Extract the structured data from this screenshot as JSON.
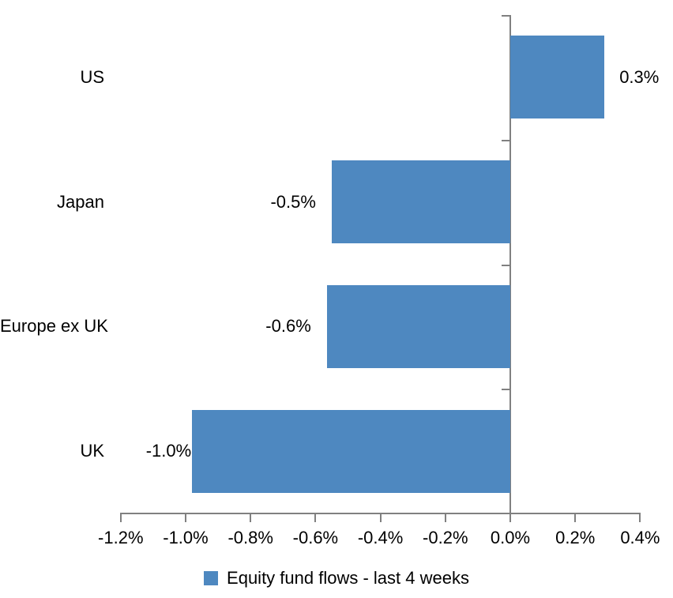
{
  "chart_data": {
    "type": "bar",
    "orientation": "horizontal",
    "title": "",
    "xlabel": "",
    "ylabel": "",
    "categories": [
      "US",
      "Japan",
      "Europe ex UK",
      "UK"
    ],
    "values": [
      0.3,
      -0.5,
      -0.6,
      -1.0
    ],
    "values_as_drawn": [
      0.29,
      -0.55,
      -0.565,
      -0.98
    ],
    "data_labels": [
      "0.3%",
      "-0.5%",
      "-0.6%",
      "-1.0%"
    ],
    "value_unit": "percent",
    "xlim": [
      -1.2,
      0.4
    ],
    "x_ticks": [
      -1.2,
      -1.0,
      -0.8,
      -0.6,
      -0.4,
      -0.2,
      0.0,
      0.2,
      0.4
    ],
    "x_tick_labels": [
      "-1.2%",
      "-1.0%",
      "-0.8%",
      "-0.6%",
      "-0.4%",
      "-0.2%",
      "0.0%",
      "0.2%",
      "0.4%"
    ],
    "grid": false,
    "legend": {
      "position": "bottom",
      "marker": "square",
      "label": "Equity fund flows - last 4 weeks"
    },
    "colors": {
      "bar": "#4E88C0",
      "axis": "#808080",
      "text": "#000000",
      "background": "#FFFFFF"
    }
  }
}
